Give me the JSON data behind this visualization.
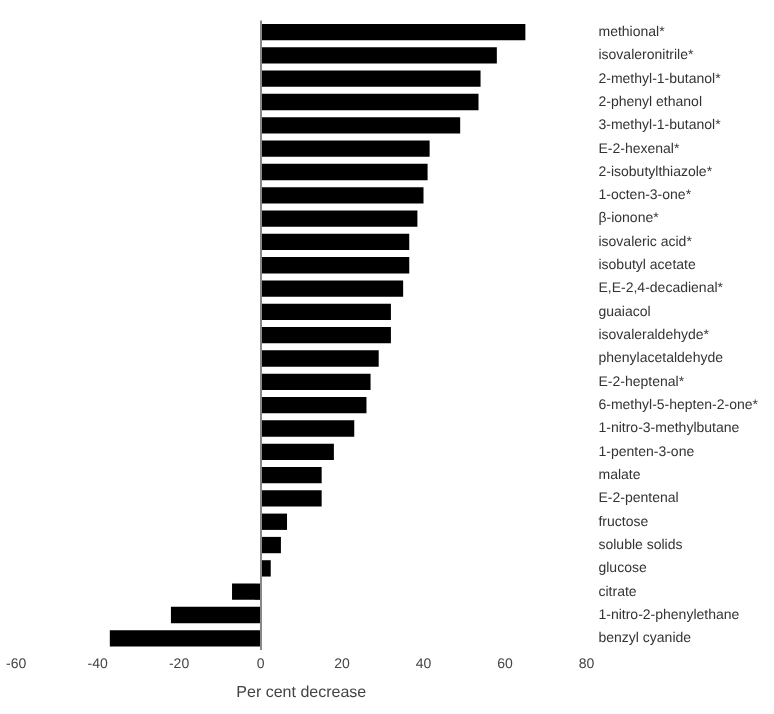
{
  "chart_data": {
    "type": "bar",
    "orientation": "horizontal",
    "xlabel": "Per cent decrease",
    "categories": [
      "methional*",
      "isovaleronitrile*",
      "2-methyl-1-butanol*",
      "2-phenyl ethanol",
      "3-methyl-1-butanol*",
      "E-2-hexenal*",
      "2-isobutylthiazole*",
      "1-octen-3-one*",
      "β-ionone*",
      "isovaleric acid*",
      "isobutyl acetate",
      "E,E-2,4-decadienal*",
      "guaiacol",
      "isovaleraldehyde*",
      "phenylacetaldehyde",
      "E-2-heptenal*",
      "6-methyl-5-hepten-2-one*",
      "1-nitro-3-methylbutane",
      "1-penten-3-one",
      "malate",
      "E-2-pentenal",
      "fructose",
      "soluble solids",
      "glucose",
      "citrate",
      "1-nitro-2-phenylethane",
      "benzyl cyanide"
    ],
    "values": [
      65,
      58,
      54,
      53.5,
      49,
      41.5,
      41,
      40,
      38.5,
      36.5,
      36.5,
      35,
      32,
      32,
      29,
      27,
      26,
      23,
      18,
      15,
      15,
      6.5,
      5,
      2.5,
      -7,
      -22,
      -37
    ],
    "color": "#000000",
    "xlim": [
      -60,
      80
    ],
    "xticks": [
      -60,
      -40,
      -20,
      0,
      20,
      40,
      60,
      80
    ],
    "legend": false
  }
}
